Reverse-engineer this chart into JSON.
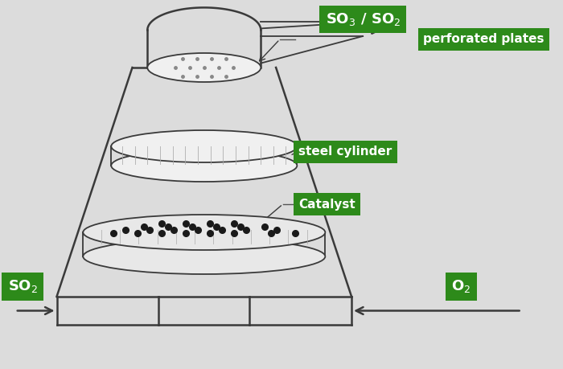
{
  "bg_color": "#dcdcdc",
  "tower_color": "#3a3a3a",
  "line_width": 1.8,
  "label_bg_color": "#2d8a1a",
  "label_text_color": "white",
  "labels": {
    "so3_so2": "SO$_3$ / SO$_2$",
    "perforated": "perforated plates",
    "steel": "steel cylinder",
    "catalyst": "Catalyst",
    "so2_in": "SO$_2$",
    "o2_in": "O$_2$"
  }
}
